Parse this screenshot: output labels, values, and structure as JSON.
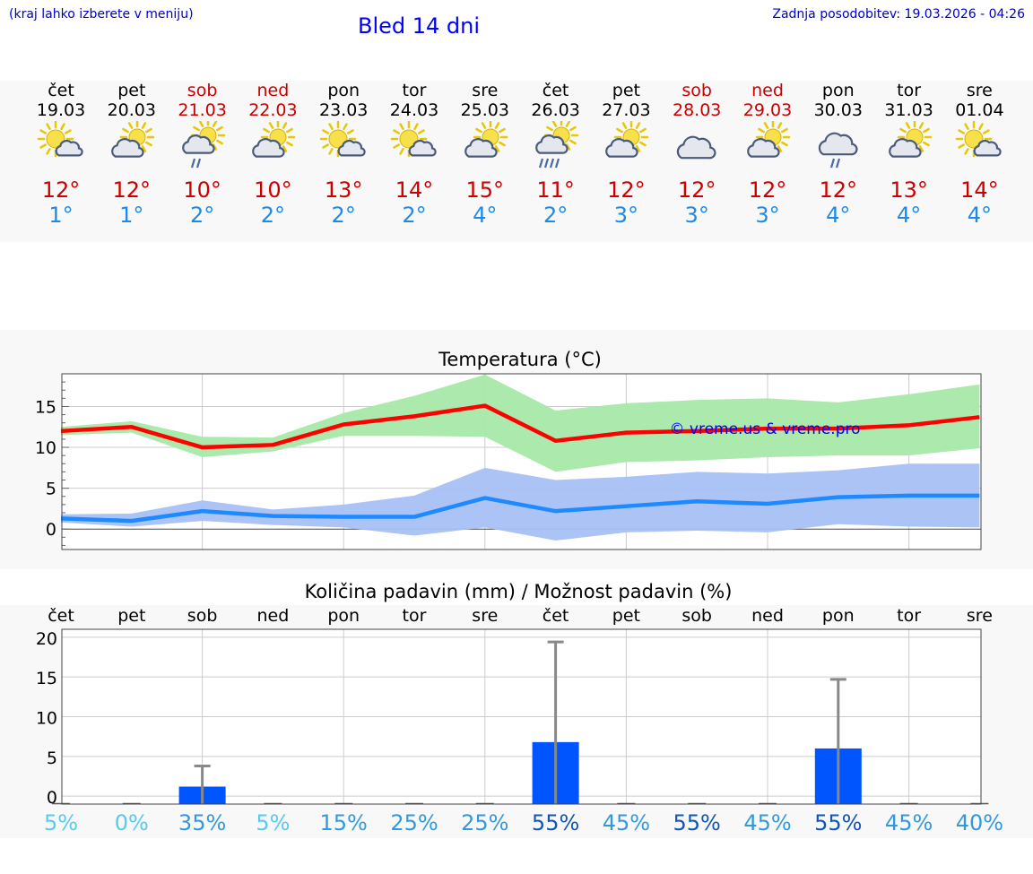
{
  "header": {
    "hint": "(kraj lahko izberete v meniju)",
    "title": "Bled 14 dni",
    "updated": "Zadnja posodobitev: 19.03.2026 - 04:26"
  },
  "days": [
    {
      "name": "čet",
      "date": "19.03",
      "weekend": false,
      "icon": "sun-cloud",
      "tmax": "12°",
      "tmin": "1°"
    },
    {
      "name": "pet",
      "date": "20.03",
      "weekend": false,
      "icon": "cloud-sun",
      "tmax": "12°",
      "tmin": "1°"
    },
    {
      "name": "sob",
      "date": "21.03",
      "weekend": true,
      "icon": "cloud-sun-drizzle",
      "tmax": "10°",
      "tmin": "2°"
    },
    {
      "name": "ned",
      "date": "22.03",
      "weekend": true,
      "icon": "cloud-sun",
      "tmax": "10°",
      "tmin": "2°"
    },
    {
      "name": "pon",
      "date": "23.03",
      "weekend": false,
      "icon": "sun-cloud",
      "tmax": "13°",
      "tmin": "2°"
    },
    {
      "name": "tor",
      "date": "24.03",
      "weekend": false,
      "icon": "sun-cloud",
      "tmax": "14°",
      "tmin": "2°"
    },
    {
      "name": "sre",
      "date": "25.03",
      "weekend": false,
      "icon": "cloud-sun",
      "tmax": "15°",
      "tmin": "4°"
    },
    {
      "name": "čet",
      "date": "26.03",
      "weekend": false,
      "icon": "cloud-sun-rain",
      "tmax": "11°",
      "tmin": "2°"
    },
    {
      "name": "pet",
      "date": "27.03",
      "weekend": false,
      "icon": "cloud-sun",
      "tmax": "12°",
      "tmin": "3°"
    },
    {
      "name": "sob",
      "date": "28.03",
      "weekend": true,
      "icon": "cloudy",
      "tmax": "12°",
      "tmin": "3°"
    },
    {
      "name": "ned",
      "date": "29.03",
      "weekend": true,
      "icon": "cloud-sun",
      "tmax": "12°",
      "tmin": "3°"
    },
    {
      "name": "pon",
      "date": "30.03",
      "weekend": false,
      "icon": "cloudy-drizzle",
      "tmax": "12°",
      "tmin": "4°"
    },
    {
      "name": "tor",
      "date": "31.03",
      "weekend": false,
      "icon": "cloud-sun",
      "tmax": "13°",
      "tmin": "4°"
    },
    {
      "name": "sre",
      "date": "01.04",
      "weekend": false,
      "icon": "sun-cloud",
      "tmax": "14°",
      "tmin": "4°"
    }
  ],
  "colors": {
    "max_line": "#ff0000",
    "max_band": "#a8e8a8",
    "min_line": "#1e8aff",
    "min_band": "#a8c0f4",
    "bar": "#0055ff",
    "whisker": "#888888",
    "weekend_text": "#cc0000",
    "watermark": "#0000ff"
  },
  "chart_data": [
    {
      "type": "line",
      "title": "Temperatura (°C)",
      "watermark": "© vreme.us & vreme.pro",
      "ylim": [
        -2.5,
        19
      ],
      "yticks": [
        0,
        5,
        10,
        15
      ],
      "grid": true,
      "x": [
        0,
        1,
        2,
        3,
        4,
        5,
        6,
        7,
        8,
        9,
        10,
        11,
        12,
        13
      ],
      "series": [
        {
          "name": "max",
          "values": [
            12.0,
            12.5,
            10.0,
            10.3,
            12.8,
            13.8,
            15.1,
            10.8,
            11.8,
            12.0,
            12.3,
            12.3,
            12.7,
            13.7
          ],
          "band_low": [
            11.5,
            11.8,
            8.8,
            9.5,
            11.4,
            11.4,
            11.3,
            7.0,
            8.2,
            8.4,
            8.8,
            9.0,
            9.0,
            9.9
          ],
          "band_high": [
            12.5,
            13.2,
            11.3,
            11.2,
            14.2,
            16.3,
            18.9,
            14.5,
            15.4,
            15.8,
            16.0,
            15.5,
            16.5,
            17.7
          ]
        },
        {
          "name": "min",
          "values": [
            1.3,
            1.0,
            2.2,
            1.6,
            1.5,
            1.5,
            3.8,
            2.2,
            2.8,
            3.4,
            3.1,
            3.9,
            4.1,
            4.1
          ],
          "band_low": [
            0.8,
            0.3,
            1.0,
            0.5,
            0.2,
            -0.8,
            0.2,
            -1.4,
            -0.4,
            -0.2,
            -0.4,
            0.6,
            0.3,
            0.2
          ],
          "band_high": [
            1.8,
            1.9,
            3.5,
            2.4,
            3.0,
            4.1,
            7.5,
            6.0,
            6.4,
            7.0,
            6.8,
            7.2,
            8.0,
            8.0
          ]
        }
      ]
    },
    {
      "type": "bar",
      "title": "Količina padavin (mm) / Možnost padavin (%)",
      "categories": [
        "čet",
        "pet",
        "sob",
        "ned",
        "pon",
        "tor",
        "sre",
        "čet",
        "pet",
        "sob",
        "ned",
        "pon",
        "tor",
        "sre"
      ],
      "values": [
        0,
        0,
        1.2,
        0,
        0,
        0,
        0,
        6.8,
        0,
        0,
        0,
        6.0,
        0,
        0
      ],
      "whisker_max": [
        0,
        0,
        3.8,
        0,
        0,
        0,
        0,
        19.4,
        0,
        0,
        0,
        14.7,
        0,
        0
      ],
      "probability": [
        "5%",
        "0%",
        "35%",
        "5%",
        "15%",
        "25%",
        "25%",
        "55%",
        "45%",
        "55%",
        "45%",
        "55%",
        "45%",
        "40%"
      ],
      "probability_colors": [
        "#55ccee",
        "#55ccee",
        "#3399dd",
        "#55ccee",
        "#3399dd",
        "#3399dd",
        "#3399dd",
        "#1155bb",
        "#3399dd",
        "#1155bb",
        "#3399dd",
        "#1155bb",
        "#3399dd",
        "#3399dd"
      ],
      "ylim": [
        -1,
        21
      ],
      "yticks": [
        0,
        5,
        10,
        15,
        20
      ],
      "grid": true
    }
  ]
}
